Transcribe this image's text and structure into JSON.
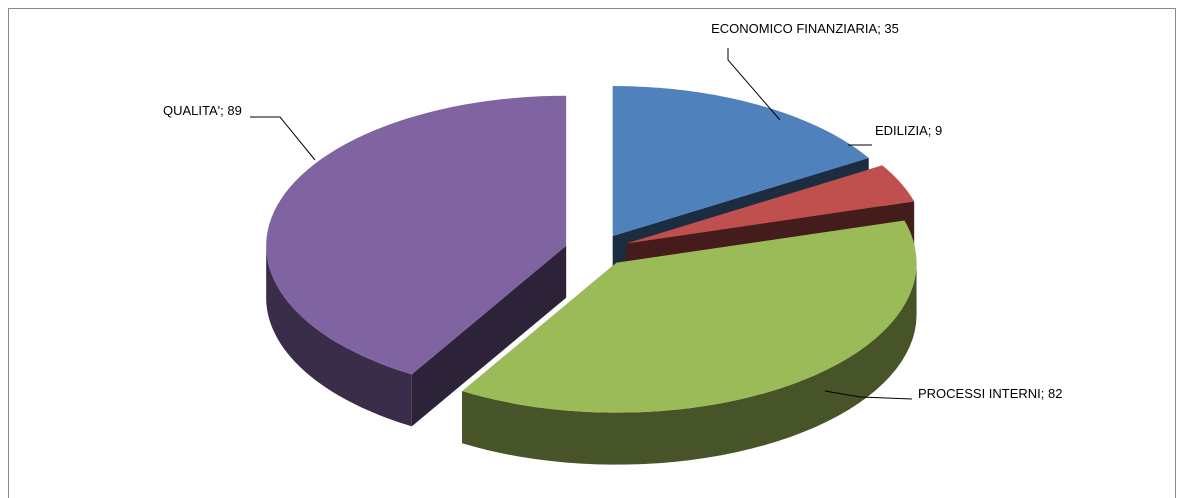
{
  "chart_data": {
    "type": "pie",
    "values": [
      35,
      9,
      82,
      89
    ],
    "value_labels": [
      "ECONOMICO FINANZIARIA; 35",
      "EDILIZIA; 9",
      "PROCESSI INTERNI; 82",
      "QUALITA'; 89"
    ],
    "colors": [
      "#4f81bd",
      "#c0504d",
      "#9bbb59",
      "#8064a2"
    ]
  }
}
